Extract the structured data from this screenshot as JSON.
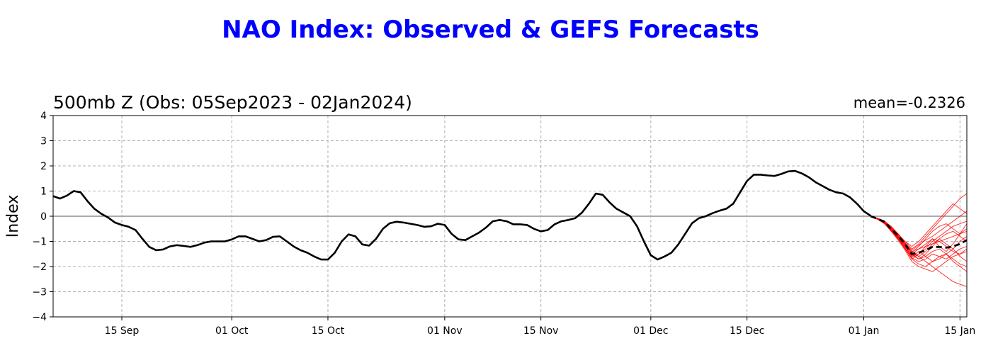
{
  "title": "NAO Index: Observed & GEFS Forecasts",
  "colors": {
    "title": "#0000ff",
    "observed": "#000000",
    "ensemble": "#ff0000",
    "ensemble_mean": "#000000",
    "grid": "#b0b0b0",
    "zero_line": "#555555"
  },
  "chart_data": {
    "type": "line",
    "subtitle": "500mb Z (Obs: 05Sep2023 - 02Jan2024)",
    "mean_label": "mean=-0.2326",
    "ylabel": "Index",
    "xlabel": "",
    "xlim": [
      "2023-09-05",
      "2024-01-16"
    ],
    "ylim": [
      -4,
      4
    ],
    "yticks": [
      -4,
      -3,
      -2,
      -1,
      0,
      1,
      2,
      3,
      4
    ],
    "ytick_labels": [
      "−4",
      "−3",
      "−2",
      "−1",
      "0",
      "1",
      "2",
      "3",
      "4"
    ],
    "xticks": [
      {
        "date": "2023-09-15",
        "label": "15 Sep"
      },
      {
        "date": "2023-10-01",
        "label": "01 Oct"
      },
      {
        "date": "2023-10-15",
        "label": "15 Oct"
      },
      {
        "date": "2023-11-01",
        "label": "01 Nov"
      },
      {
        "date": "2023-11-15",
        "label": "15 Nov"
      },
      {
        "date": "2023-12-01",
        "label": "01 Dec"
      },
      {
        "date": "2023-12-15",
        "label": "15 Dec"
      },
      {
        "date": "2024-01-01",
        "label": "01 Jan"
      },
      {
        "date": "2024-01-15",
        "label": "15 Jan"
      }
    ],
    "grid": true,
    "observed": {
      "x": [
        "2023-09-05",
        "2023-09-06",
        "2023-09-07",
        "2023-09-08",
        "2023-09-09",
        "2023-09-10",
        "2023-09-11",
        "2023-09-12",
        "2023-09-13",
        "2023-09-14",
        "2023-09-15",
        "2023-09-16",
        "2023-09-17",
        "2023-09-18",
        "2023-09-19",
        "2023-09-20",
        "2023-09-21",
        "2023-09-22",
        "2023-09-23",
        "2023-09-24",
        "2023-09-25",
        "2023-09-26",
        "2023-09-27",
        "2023-09-28",
        "2023-09-29",
        "2023-09-30",
        "2023-10-01",
        "2023-10-02",
        "2023-10-03",
        "2023-10-04",
        "2023-10-05",
        "2023-10-06",
        "2023-10-07",
        "2023-10-08",
        "2023-10-09",
        "2023-10-10",
        "2023-10-11",
        "2023-10-12",
        "2023-10-13",
        "2023-10-14",
        "2023-10-15",
        "2023-10-16",
        "2023-10-17",
        "2023-10-18",
        "2023-10-19",
        "2023-10-20",
        "2023-10-21",
        "2023-10-22",
        "2023-10-23",
        "2023-10-24",
        "2023-10-25",
        "2023-10-26",
        "2023-10-27",
        "2023-10-28",
        "2023-10-29",
        "2023-10-30",
        "2023-10-31",
        "2023-11-01",
        "2023-11-02",
        "2023-11-03",
        "2023-11-04",
        "2023-11-05",
        "2023-11-06",
        "2023-11-07",
        "2023-11-08",
        "2023-11-09",
        "2023-11-10",
        "2023-11-11",
        "2023-11-12",
        "2023-11-13",
        "2023-11-14",
        "2023-11-15",
        "2023-11-16",
        "2023-11-17",
        "2023-11-18",
        "2023-11-19",
        "2023-11-20",
        "2023-11-21",
        "2023-11-22",
        "2023-11-23",
        "2023-11-24",
        "2023-11-25",
        "2023-11-26",
        "2023-11-27",
        "2023-11-28",
        "2023-11-29",
        "2023-11-30",
        "2023-12-01",
        "2023-12-02",
        "2023-12-03",
        "2023-12-04",
        "2023-12-05",
        "2023-12-06",
        "2023-12-07",
        "2023-12-08",
        "2023-12-09",
        "2023-12-10",
        "2023-12-11",
        "2023-12-12",
        "2023-12-13",
        "2023-12-14",
        "2023-12-15",
        "2023-12-16",
        "2023-12-17",
        "2023-12-18",
        "2023-12-19",
        "2023-12-20",
        "2023-12-21",
        "2023-12-22",
        "2023-12-23",
        "2023-12-24",
        "2023-12-25",
        "2023-12-26",
        "2023-12-27",
        "2023-12-28",
        "2023-12-29",
        "2023-12-30",
        "2023-12-31",
        "2024-01-01",
        "2024-01-02"
      ],
      "y": [
        0.8,
        0.7,
        0.82,
        1.0,
        0.95,
        0.6,
        0.3,
        0.1,
        -0.05,
        -0.25,
        -0.35,
        -0.42,
        -0.55,
        -0.9,
        -1.22,
        -1.35,
        -1.32,
        -1.2,
        -1.15,
        -1.18,
        -1.22,
        -1.15,
        -1.05,
        -1.0,
        -1.0,
        -1.0,
        -0.92,
        -0.8,
        -0.8,
        -0.9,
        -1.0,
        -0.95,
        -0.82,
        -0.8,
        -1.0,
        -1.2,
        -1.35,
        -1.45,
        -1.6,
        -1.72,
        -1.72,
        -1.45,
        -1.0,
        -0.72,
        -0.8,
        -1.12,
        -1.17,
        -0.9,
        -0.5,
        -0.28,
        -0.22,
        -0.25,
        -0.3,
        -0.35,
        -0.42,
        -0.4,
        -0.3,
        -0.35,
        -0.7,
        -0.92,
        -0.95,
        -0.8,
        -0.65,
        -0.45,
        -0.2,
        -0.15,
        -0.2,
        -0.32,
        -0.32,
        -0.35,
        -0.5,
        -0.6,
        -0.55,
        -0.32,
        -0.2,
        -0.15,
        -0.08,
        0.15,
        0.5,
        0.9,
        0.85,
        0.55,
        0.3,
        0.15,
        0.0,
        -0.4,
        -1.0,
        -1.55,
        -1.72,
        -1.6,
        -1.45,
        -1.12,
        -0.7,
        -0.28,
        -0.08,
        0.0,
        0.12,
        0.22,
        0.3,
        0.5,
        0.95,
        1.4,
        1.65,
        1.65,
        1.62,
        1.6,
        1.68,
        1.78,
        1.8,
        1.7,
        1.55,
        1.35,
        1.2,
        1.05,
        0.95,
        0.9,
        0.75,
        0.5,
        0.2,
        0.02
      ]
    },
    "ensemble_mean": {
      "x": [
        "2024-01-02",
        "2024-01-03",
        "2024-01-04",
        "2024-01-05",
        "2024-01-06",
        "2024-01-07",
        "2024-01-08",
        "2024-01-09",
        "2024-01-10",
        "2024-01-11",
        "2024-01-12",
        "2024-01-13",
        "2024-01-14",
        "2024-01-15",
        "2024-01-16"
      ],
      "y": [
        0.0,
        -0.1,
        -0.22,
        -0.5,
        -0.78,
        -1.1,
        -1.5,
        -1.45,
        -1.35,
        -1.22,
        -1.22,
        -1.25,
        -1.2,
        -1.1,
        -0.95
      ]
    },
    "ensemble_members": [
      [
        0.0,
        -0.12,
        -0.3,
        -0.6,
        -0.9,
        -1.3,
        -1.7,
        -1.9,
        -2.0,
        -1.8,
        -1.6,
        -1.5,
        -1.7,
        -1.9,
        -2.0
      ],
      [
        0.0,
        -0.08,
        -0.2,
        -0.4,
        -0.7,
        -1.0,
        -1.3,
        -1.1,
        -0.8,
        -0.5,
        -0.2,
        0.1,
        0.4,
        0.7,
        0.9
      ],
      [
        0.0,
        -0.1,
        -0.25,
        -0.55,
        -0.85,
        -1.2,
        -1.6,
        -1.5,
        -1.3,
        -1.0,
        -0.8,
        -0.6,
        -0.4,
        -0.3,
        -0.2
      ],
      [
        0.0,
        -0.1,
        -0.22,
        -0.5,
        -0.8,
        -1.1,
        -1.4,
        -1.6,
        -1.8,
        -2.0,
        -2.2,
        -2.4,
        -2.6,
        -2.7,
        -2.8
      ],
      [
        0.0,
        -0.09,
        -0.18,
        -0.45,
        -0.7,
        -1.05,
        -1.5,
        -1.3,
        -1.1,
        -0.9,
        -1.0,
        -1.2,
        -1.4,
        -1.5,
        -1.3
      ],
      [
        0.0,
        -0.11,
        -0.25,
        -0.55,
        -0.9,
        -1.2,
        -1.55,
        -1.7,
        -1.5,
        -1.2,
        -0.9,
        -0.7,
        -0.6,
        -0.8,
        -1.0
      ],
      [
        0.0,
        -0.1,
        -0.24,
        -0.5,
        -0.82,
        -1.15,
        -1.45,
        -1.2,
        -0.9,
        -0.6,
        -0.4,
        -0.3,
        -0.5,
        -0.7,
        -0.6
      ],
      [
        0.0,
        -0.12,
        -0.28,
        -0.6,
        -0.95,
        -1.35,
        -1.8,
        -2.0,
        -2.1,
        -2.2,
        -2.0,
        -1.8,
        -1.6,
        -1.5,
        -1.4
      ],
      [
        0.0,
        -0.08,
        -0.2,
        -0.45,
        -0.75,
        -1.0,
        -1.2,
        -1.0,
        -0.7,
        -0.4,
        -0.1,
        0.2,
        0.5,
        0.3,
        0.1
      ],
      [
        0.0,
        -0.1,
        -0.22,
        -0.5,
        -0.78,
        -1.1,
        -1.5,
        -1.7,
        -1.6,
        -1.4,
        -1.3,
        -1.5,
        -1.8,
        -2.0,
        -2.2
      ],
      [
        0.0,
        -0.1,
        -0.2,
        -0.48,
        -0.8,
        -1.12,
        -1.4,
        -1.3,
        -1.2,
        -1.1,
        -1.0,
        -0.9,
        -0.8,
        -0.7,
        -0.5
      ],
      [
        0.0,
        -0.11,
        -0.26,
        -0.55,
        -0.88,
        -1.25,
        -1.65,
        -1.8,
        -1.7,
        -1.5,
        -1.6,
        -1.7,
        -1.5,
        -1.3,
        -1.2
      ],
      [
        0.0,
        -0.09,
        -0.2,
        -0.45,
        -0.72,
        -1.05,
        -1.35,
        -1.15,
        -0.95,
        -0.8,
        -0.6,
        -0.4,
        -0.2,
        0.0,
        0.2
      ],
      [
        0.0,
        -0.1,
        -0.25,
        -0.52,
        -0.85,
        -1.2,
        -1.6,
        -1.4,
        -1.6,
        -1.8,
        -1.7,
        -1.5,
        -1.3,
        -1.6,
        -1.8
      ],
      [
        0.0,
        -0.1,
        -0.23,
        -0.5,
        -0.8,
        -1.1,
        -1.45,
        -1.6,
        -1.4,
        -1.1,
        -0.9,
        -1.1,
        -1.3,
        -1.0,
        -0.8
      ],
      [
        0.0,
        -0.12,
        -0.27,
        -0.58,
        -0.9,
        -1.28,
        -1.7,
        -1.5,
        -1.2,
        -0.9,
        -1.2,
        -1.4,
        -1.1,
        -0.7,
        -0.3
      ]
    ]
  }
}
